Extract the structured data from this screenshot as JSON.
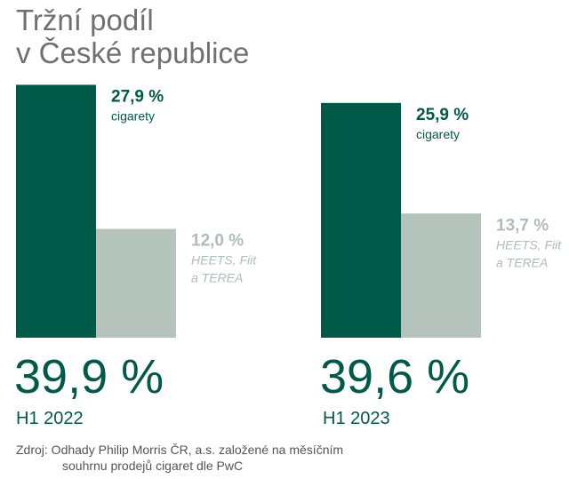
{
  "title_line1": "Tržní podíl",
  "title_line2": "v České republice",
  "colors": {
    "cigarettes": "#005a4a",
    "heated": "#b4c4bd",
    "heated_label": "#b0bcb7"
  },
  "chart_data": [
    {
      "type": "bar",
      "period": "H1 2022",
      "total": "39,9 %",
      "categories": [
        "cigarety",
        "HEETS, Fiit a TEREA"
      ],
      "values": [
        27.9,
        12.0
      ],
      "labels": [
        "27,9 %",
        "12,0 %"
      ],
      "sublabels": [
        [
          "cigarety"
        ],
        [
          "HEETS, Fiit",
          "a TEREA"
        ]
      ]
    },
    {
      "type": "bar",
      "period": "H1 2023",
      "total": "39,6 %",
      "categories": [
        "cigarety",
        "HEETS, Fiit a TEREA"
      ],
      "values": [
        25.9,
        13.7
      ],
      "labels": [
        "25,9 %",
        "13,7 %"
      ],
      "sublabels": [
        [
          "cigarety"
        ],
        [
          "HEETS, Fiit",
          "a TEREA"
        ]
      ]
    }
  ],
  "source_line1": "Zdroj: Odhady Philip Morris ČR, a.s. založené na měsíčním",
  "source_line2": "souhrnu prodejů cigaret dle PwC"
}
